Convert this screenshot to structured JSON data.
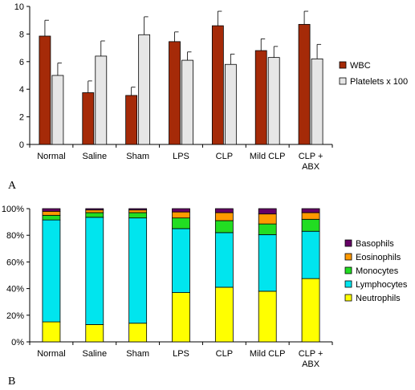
{
  "chart_data": [
    {
      "type": "bar",
      "panel_label": "A",
      "categories": [
        "Normal",
        "Saline",
        "Sham",
        "LPS",
        "CLP",
        "Mild CLP",
        "CLP + ABX"
      ],
      "category_lines": [
        [
          "Normal"
        ],
        [
          "Saline"
        ],
        [
          "Sham"
        ],
        [
          "LPS"
        ],
        [
          "CLP"
        ],
        [
          "Mild CLP"
        ],
        [
          "CLP +",
          "ABX"
        ]
      ],
      "ylim": [
        0,
        10
      ],
      "yticks": [
        "0",
        "2",
        "4",
        "6",
        "8",
        "10"
      ],
      "legend_position": "right",
      "series": [
        {
          "name": "WBC",
          "color": "#a52a08",
          "values": [
            7.85,
            3.75,
            3.55,
            7.45,
            8.6,
            6.8,
            8.7
          ],
          "errors": [
            1.15,
            0.85,
            0.6,
            0.7,
            1.05,
            0.85,
            0.95
          ]
        },
        {
          "name": "Platelets x 100",
          "color": "#e6e6e6",
          "values": [
            5.0,
            6.4,
            7.95,
            6.1,
            5.8,
            6.3,
            6.2
          ],
          "errors": [
            0.9,
            1.1,
            1.3,
            0.6,
            0.75,
            0.8,
            1.05
          ]
        }
      ]
    },
    {
      "type": "bar",
      "stacked": true,
      "panel_label": "B",
      "categories": [
        "Normal",
        "Saline",
        "Sham",
        "LPS",
        "CLP",
        "Mild CLP",
        "CLP + ABX"
      ],
      "category_lines": [
        [
          "Normal"
        ],
        [
          "Saline"
        ],
        [
          "Sham"
        ],
        [
          "LPS"
        ],
        [
          "CLP"
        ],
        [
          "Mild CLP"
        ],
        [
          "CLP +",
          "ABX"
        ]
      ],
      "ylim": [
        0,
        100
      ],
      "yticks": [
        "0%",
        "20%",
        "40%",
        "60%",
        "80%",
        "100%"
      ],
      "legend_position": "right",
      "series": [
        {
          "name": "Neutrophils",
          "color": "#ffff00",
          "values": [
            15,
            13,
            14,
            37,
            41,
            38,
            47.5
          ]
        },
        {
          "name": "Lymphocytes",
          "color": "#00e5ee",
          "values": [
            76.5,
            80.5,
            79,
            48,
            41,
            42.5,
            35.5
          ]
        },
        {
          "name": "Monocytes",
          "color": "#22dd22",
          "values": [
            3.5,
            3.5,
            4,
            8,
            9,
            8,
            9
          ]
        },
        {
          "name": "Eosinophils",
          "color": "#ff9900",
          "values": [
            3,
            2,
            2,
            4.5,
            6,
            7.5,
            5
          ]
        },
        {
          "name": "Basophils",
          "color": "#660066",
          "values": [
            2,
            1,
            1,
            2.5,
            3,
            4,
            3
          ]
        }
      ]
    }
  ]
}
